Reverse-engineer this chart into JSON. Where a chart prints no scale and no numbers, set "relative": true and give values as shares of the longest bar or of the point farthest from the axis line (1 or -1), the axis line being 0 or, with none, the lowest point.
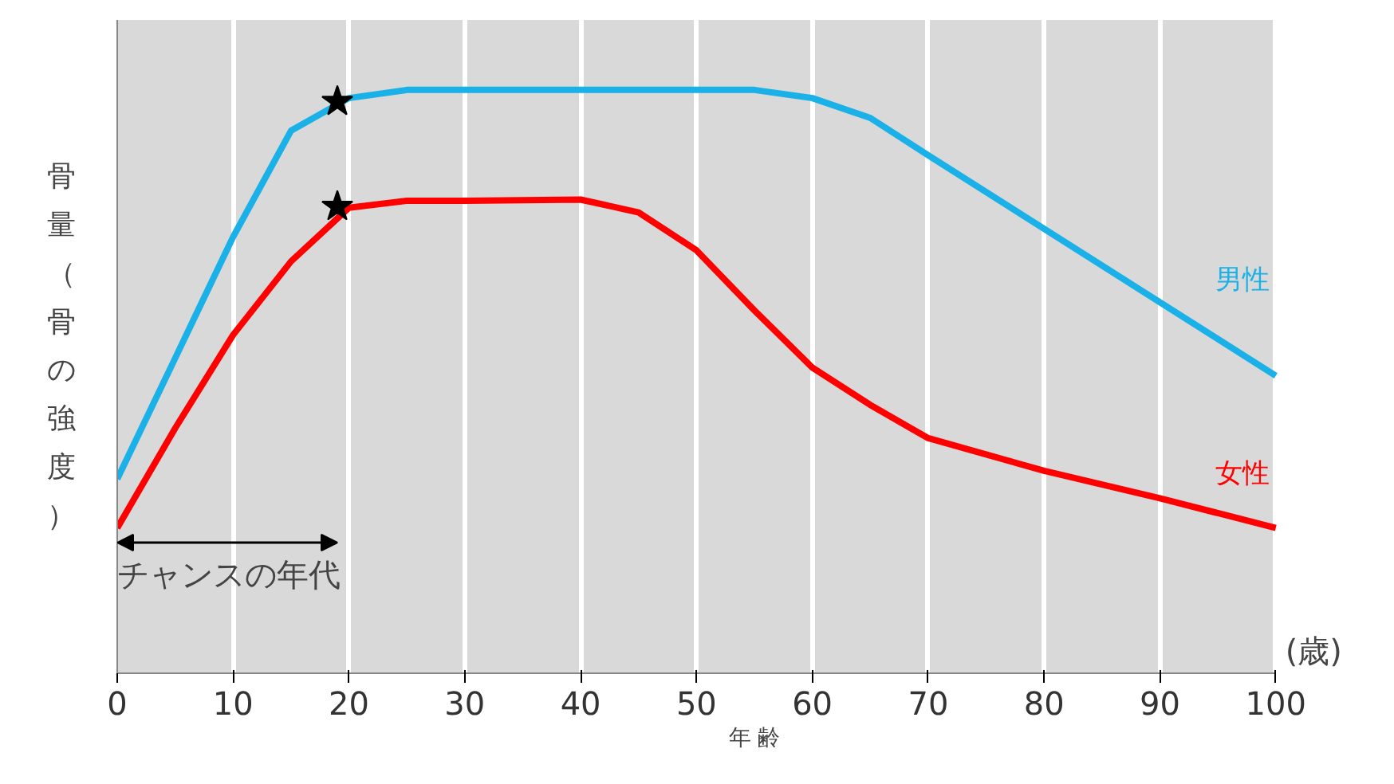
{
  "chart_data": {
    "type": "line",
    "relative": true,
    "xlabel": "年 齢",
    "ylabel": "骨量（骨の強度）",
    "xlim": [
      0,
      100
    ],
    "xticks": [
      0,
      10,
      20,
      30,
      40,
      50,
      60,
      70,
      80,
      90,
      100
    ],
    "grid": "x",
    "tick_labels": "x",
    "legend": false,
    "marker": "none",
    "line_style": "solid",
    "series": [
      {
        "name": "男性",
        "color": "#1ab0e8",
        "x": [
          0,
          5,
          10,
          15,
          20,
          25,
          30,
          40,
          50,
          55,
          60,
          65,
          70,
          80,
          90,
          100
        ],
        "values": [
          0.333,
          0.54,
          0.748,
          0.93,
          0.986,
          1,
          1,
          1,
          1,
          1,
          0.986,
          0.952,
          0.888,
          0.762,
          0.636,
          0.51
        ]
      },
      {
        "name": "女性",
        "color": "#ff0000",
        "x": [
          0,
          5,
          10,
          15,
          20,
          25,
          30,
          40,
          45,
          50,
          55,
          60,
          65,
          70,
          80,
          90,
          100
        ],
        "values": [
          0.249,
          0.42,
          0.58,
          0.706,
          0.798,
          0.81,
          0.81,
          0.812,
          0.79,
          0.725,
          0.622,
          0.524,
          0.46,
          0.403,
          0.347,
          0.3,
          0.249
        ]
      },
      {
        "type": "scatter",
        "marker": "star",
        "color": "#000000",
        "x": [
          19,
          19
        ],
        "values": [
          0.98,
          0.8
        ]
      }
    ],
    "annotations": [
      "チャンスの年代",
      "(歳)"
    ]
  }
}
